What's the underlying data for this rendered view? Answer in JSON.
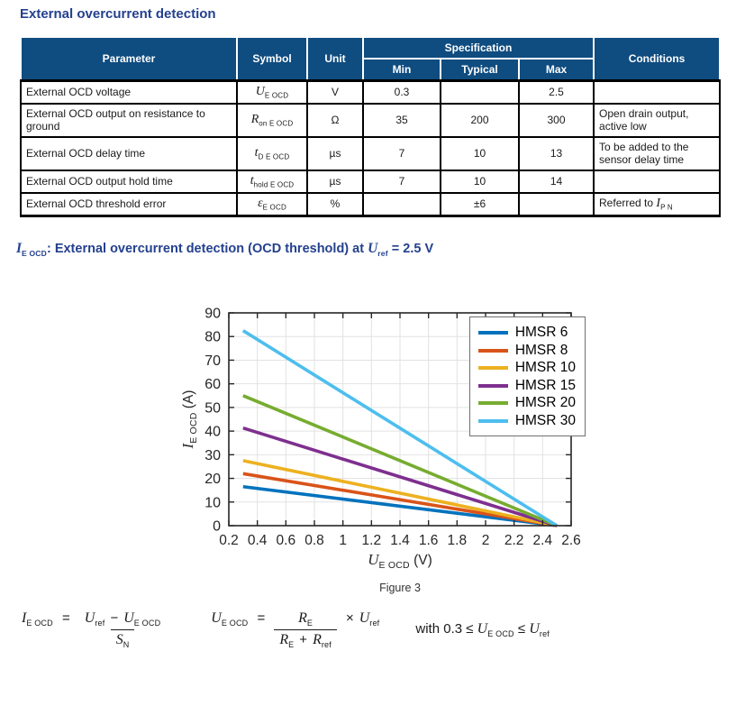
{
  "page": {
    "title": "External overcurrent detection"
  },
  "colors": {
    "heading_text": "#24418e",
    "table_header_bg": "#0f4c80",
    "table_header_text": "#ffffff",
    "table_border": "#000000",
    "body_text": "#1a1a1a"
  },
  "table": {
    "headers": {
      "parameter": "Parameter",
      "symbol": "Symbol",
      "unit": "Unit",
      "specification": "Specification",
      "min": "Min",
      "typical": "Typical",
      "max": "Max",
      "conditions": "Conditions"
    },
    "rows": [
      {
        "parameter": "External OCD voltage",
        "symbol_base": "U",
        "symbol_sub": "E OCD",
        "unit": "V",
        "min": "0.3",
        "typical": "",
        "max": "2.5",
        "conditions": ""
      },
      {
        "parameter": "External OCD output on resistance to ground",
        "symbol_base": "R",
        "symbol_sub": "on E OCD",
        "unit": "Ω",
        "min": "35",
        "typical": "200",
        "max": "300",
        "conditions": "Open drain output, active low"
      },
      {
        "parameter": "External OCD delay time",
        "symbol_base": "t",
        "symbol_sub": "D E OCD",
        "unit": "µs",
        "min": "7",
        "typical": "10",
        "max": "13",
        "conditions": "To be added to the sensor delay time"
      },
      {
        "parameter": "External OCD output hold time",
        "symbol_base": "t",
        "symbol_sub": "hold E OCD",
        "unit": "µs",
        "min": "7",
        "typical": "10",
        "max": "14",
        "conditions": ""
      },
      {
        "parameter": "External OCD threshold error",
        "symbol_base": "ε",
        "symbol_sub": "E OCD",
        "unit": "%",
        "min": "",
        "typical": "±6",
        "max": "",
        "conditions_prefix": "Referred to ",
        "conditions_sym": "I",
        "conditions_sym_sub": "P N"
      }
    ]
  },
  "note": {
    "sym": "I",
    "sym_sub": "E OCD",
    "text": ": External overcurrent detection (OCD threshold) at ",
    "ref": "U",
    "ref_sub": "ref",
    "suffix": " = 2.5 V"
  },
  "chart_data": {
    "type": "line",
    "xlabel_base": "U",
    "xlabel_sub": "E OCD",
    "xlabel_unit": " (V)",
    "ylabel_base": "I",
    "ylabel_sub": "E OCD",
    "ylabel_unit": " (A)",
    "xlim": [
      0.2,
      2.6
    ],
    "ylim": [
      0,
      90
    ],
    "x_ticks": [
      0.2,
      0.4,
      0.6,
      0.8,
      1,
      1.2,
      1.4,
      1.6,
      1.8,
      2,
      2.2,
      2.4,
      2.6
    ],
    "x_tick_labels": [
      "0.2",
      "0.4",
      "0.6",
      "0.8",
      "1",
      "1.2",
      "1.4",
      "1.6",
      "1.8",
      "2",
      "2.2",
      "2.4",
      "2.6"
    ],
    "y_ticks": [
      0,
      10,
      20,
      30,
      40,
      50,
      60,
      70,
      80,
      90
    ],
    "grid": true,
    "legend_position": "top-right",
    "axis_color": "#262626",
    "grid_color": "#e2e2e2",
    "series": [
      {
        "name": "HMSR 6",
        "color": "#0072BD",
        "x": [
          0.3,
          2.5
        ],
        "y": [
          16.5,
          0
        ]
      },
      {
        "name": "HMSR 8",
        "color": "#D95319",
        "x": [
          0.3,
          2.5
        ],
        "y": [
          22,
          0
        ]
      },
      {
        "name": "HMSR 10",
        "color": "#EDB120",
        "x": [
          0.3,
          2.5
        ],
        "y": [
          27.5,
          0
        ]
      },
      {
        "name": "HMSR 15",
        "color": "#7E2F8E",
        "x": [
          0.3,
          2.5
        ],
        "y": [
          41.3,
          0
        ]
      },
      {
        "name": "HMSR 20",
        "color": "#77AC30",
        "x": [
          0.3,
          2.5
        ],
        "y": [
          55,
          0
        ]
      },
      {
        "name": "HMSR 30",
        "color": "#4DBEEE",
        "x": [
          0.3,
          2.5
        ],
        "y": [
          82.5,
          0
        ]
      }
    ]
  },
  "figure_caption": "Figure 3",
  "formulas": {
    "f1": {
      "lhs": "I",
      "lhs_sub": "E OCD",
      "eq": "=",
      "num_u1": "U",
      "num_u1_sub": "ref",
      "minus": "−",
      "num_u2": "U",
      "num_u2_sub": "E OCD",
      "den": "S",
      "den_sub": "N"
    },
    "f2": {
      "lhs": "U",
      "lhs_sub": "E OCD",
      "eq": "=",
      "num": "R",
      "num_sub": "E",
      "den1": "R",
      "den1_sub": "E",
      "plus": "+",
      "den2": "R",
      "den2_sub": "ref",
      "times": "×",
      "rhs": "U",
      "rhs_sub": "ref"
    },
    "f3": {
      "prefix": "with 0.3 ≤ ",
      "u1": "U",
      "u1_sub": "E OCD",
      "leq": " ≤ ",
      "u2": "U",
      "u2_sub": "ref"
    }
  }
}
